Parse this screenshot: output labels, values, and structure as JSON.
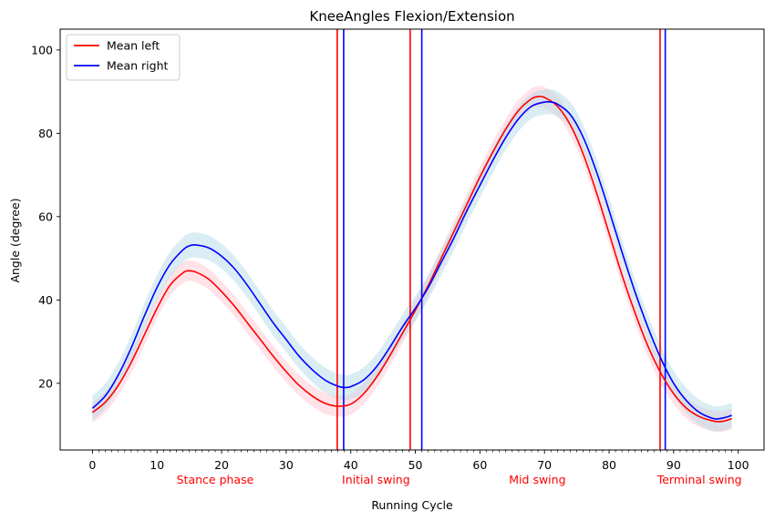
{
  "chart_data": {
    "type": "line",
    "title": "KneeAngles Flexion/Extension",
    "xlabel": "Running Cycle",
    "ylabel": "Angle (degree)",
    "xlim": [
      -5,
      104
    ],
    "ylim": [
      4,
      105
    ],
    "x_ticks": [
      0,
      10,
      20,
      30,
      40,
      50,
      60,
      70,
      80,
      90,
      100
    ],
    "y_ticks": [
      20,
      40,
      60,
      80,
      100
    ],
    "minor_x_ticks_every": 1,
    "grid": false,
    "legend_position": "upper-left",
    "colors": {
      "left": "#ff0000",
      "right": "#0000ff",
      "left_band": "#ffc0cb",
      "right_band": "#add8e6"
    },
    "series": [
      {
        "name": "Mean left",
        "color": "#ff0000",
        "x": [
          0,
          2,
          4,
          6,
          8,
          10,
          12,
          14,
          15,
          16,
          18,
          20,
          22,
          24,
          26,
          28,
          30,
          32,
          34,
          36,
          38,
          40,
          42,
          44,
          46,
          48,
          50,
          52,
          54,
          56,
          58,
          60,
          62,
          64,
          66,
          68,
          69,
          70,
          72,
          74,
          76,
          78,
          80,
          82,
          84,
          86,
          88,
          90,
          92,
          94,
          96,
          97,
          98,
          99
        ],
        "y": [
          13,
          15.5,
          19.5,
          25,
          31.5,
          38,
          43.5,
          46.5,
          47,
          46.7,
          45,
          42,
          38.5,
          34.5,
          30.5,
          26.5,
          22.8,
          19.5,
          17,
          15.2,
          14.5,
          15,
          17.5,
          21.5,
          26.5,
          32,
          37.5,
          43.5,
          50,
          56.5,
          63,
          69.5,
          75.5,
          81,
          85.5,
          88.3,
          88.8,
          88.6,
          86.5,
          82,
          75,
          66,
          56,
          46,
          37,
          29,
          22.5,
          17.5,
          14,
          12,
          11,
          10.8,
          11,
          11.5
        ],
        "band": [
          2.5,
          2.5,
          2.5,
          2.5,
          2.5,
          2.5,
          2.5,
          2.5,
          2.5,
          2.5,
          2.5,
          2.5,
          2.5,
          2.5,
          2.5,
          2.5,
          2.5,
          2.5,
          2.5,
          2.5,
          2.5,
          2.5,
          2.5,
          2.5,
          2.5,
          2.5,
          2.5,
          2.5,
          2.5,
          2.5,
          2.5,
          2.5,
          2.5,
          2.5,
          2.5,
          2.5,
          2.5,
          2.5,
          2.5,
          2.5,
          2.5,
          2.5,
          2.5,
          2.5,
          2.5,
          2.5,
          2.5,
          2.5,
          2.5,
          2.5,
          2.5,
          2.5,
          2.5,
          2.5
        ]
      },
      {
        "name": "Mean right",
        "color": "#0000ff",
        "x": [
          0,
          2,
          4,
          6,
          8,
          10,
          12,
          14,
          15,
          16,
          18,
          20,
          22,
          24,
          26,
          28,
          30,
          32,
          34,
          36,
          38,
          39,
          40,
          42,
          44,
          46,
          48,
          50,
          52,
          54,
          56,
          58,
          60,
          62,
          64,
          66,
          68,
          70,
          71,
          72,
          74,
          76,
          78,
          80,
          82,
          84,
          86,
          88,
          90,
          92,
          94,
          96,
          97,
          98,
          99
        ],
        "y": [
          14,
          17,
          22,
          28.5,
          36,
          43,
          48.5,
          52,
          53,
          53.2,
          52.5,
          50.5,
          47.5,
          43.5,
          39,
          34.5,
          30.5,
          26.5,
          23.3,
          20.8,
          19.3,
          19,
          19.2,
          20.8,
          24,
          28.5,
          33.5,
          38,
          43,
          49,
          55,
          61.5,
          67.5,
          73.5,
          79,
          83.5,
          86.5,
          87.5,
          87.5,
          87,
          84.5,
          79,
          71,
          61.5,
          51.5,
          42,
          33.5,
          26,
          20,
          15.8,
          13,
          11.6,
          11.5,
          11.8,
          12.3
        ],
        "band": [
          3,
          3,
          3,
          3,
          3,
          3,
          3,
          3,
          3,
          3,
          3,
          3,
          3,
          3,
          3,
          3,
          3,
          3,
          3,
          3,
          3,
          3,
          3,
          3,
          3,
          3,
          3,
          3,
          3,
          3,
          3,
          3,
          3,
          3,
          3,
          3,
          3,
          3,
          3,
          3,
          3,
          3,
          3,
          3,
          3,
          3,
          3,
          3,
          3,
          3,
          3,
          3,
          3,
          3,
          3
        ]
      }
    ],
    "vertical_lines": [
      {
        "x": 37.9,
        "color": "#ff0000"
      },
      {
        "x": 38.9,
        "color": "#0000ff"
      },
      {
        "x": 49.2,
        "color": "#ff0000"
      },
      {
        "x": 51.0,
        "color": "#0000ff"
      },
      {
        "x": 87.9,
        "color": "#ff0000"
      },
      {
        "x": 88.7,
        "color": "#0000ff"
      }
    ],
    "phase_labels": [
      {
        "text": "Stance phase",
        "x": 19
      },
      {
        "text": "Initial swing",
        "x": 43.9
      },
      {
        "text": "Mid swing",
        "x": 68.9
      },
      {
        "text": "Terminal swing",
        "x": 94
      }
    ],
    "legend": [
      {
        "label": "Mean left",
        "color": "#ff0000"
      },
      {
        "label": "Mean right",
        "color": "#0000ff"
      }
    ]
  }
}
